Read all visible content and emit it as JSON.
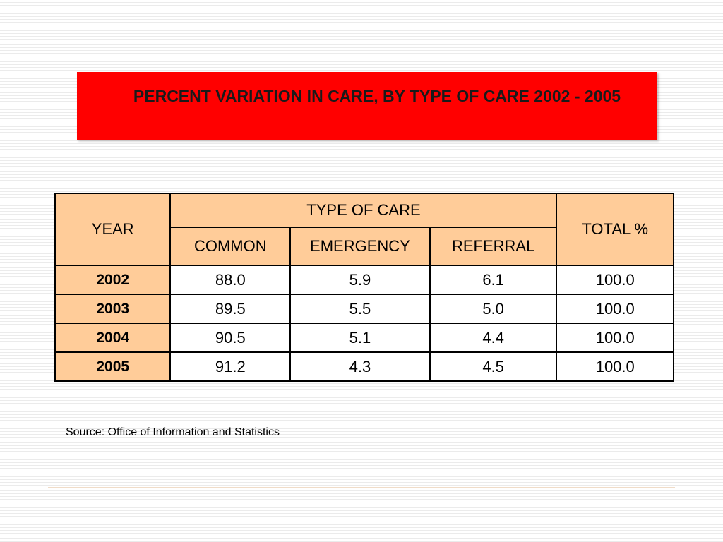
{
  "title": "PERCENT VARIATION IN CARE, BY TYPE OF CARE 2002 - 2005",
  "table": {
    "year_header": "YEAR",
    "type_header": "TYPE OF CARE",
    "total_header": "TOTAL %",
    "sub_headers": [
      "COMMON",
      "EMERGENCY",
      "REFERRAL"
    ],
    "rows": [
      {
        "year": "2002",
        "common": "88.0",
        "emergency": "5.9",
        "referral": "6.1",
        "total": "100.0"
      },
      {
        "year": "2003",
        "common": "89.5",
        "emergency": "5.5",
        "referral": "5.0",
        "total": "100.0"
      },
      {
        "year": "2004",
        "common": "90.5",
        "emergency": "5.1",
        "referral": "4.4",
        "total": "100.0"
      },
      {
        "year": "2005",
        "common": "91.2",
        "emergency": "4.3",
        "referral": "4.5",
        "total": "100.0"
      }
    ]
  },
  "source": "Source: Office of Information and Statistics",
  "colors": {
    "title_background": "#ff0000",
    "header_background": "#ffcc99",
    "border": "#000000"
  }
}
